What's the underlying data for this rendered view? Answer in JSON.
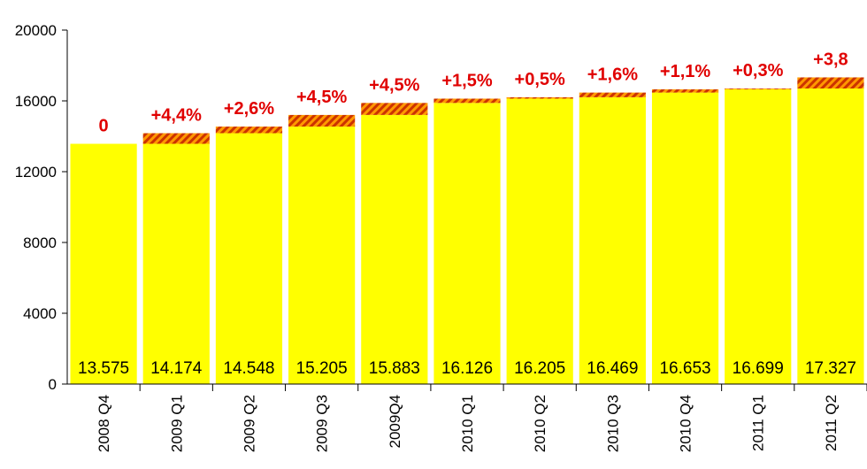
{
  "chart_data": {
    "type": "bar",
    "categories": [
      "2008 Q4",
      "2009 Q1",
      "2009 Q2",
      "2009 Q3",
      "2009Q4",
      "2010 Q1",
      "2010 Q2",
      "2010 Q3",
      "2010 Q4",
      "2011 Q1",
      "2011 Q2"
    ],
    "values": [
      13575,
      14174,
      14548,
      15205,
      15883,
      16126,
      16205,
      16469,
      16653,
      16699,
      17327
    ],
    "value_labels": [
      "13.575",
      "14.174",
      "14.548",
      "15.205",
      "15.883",
      "16.126",
      "16.205",
      "16.469",
      "16.653",
      "16.699",
      "17.327"
    ],
    "change_labels": [
      "0",
      "+4,4%",
      "+2,6%",
      "+4,5%",
      "+4,5%",
      "+1,5%",
      "+0,5%",
      "+1,6%",
      "+1,1%",
      "+0,3%",
      "+3,8"
    ],
    "ylim": [
      0,
      20000
    ],
    "yticks": [
      0,
      4000,
      8000,
      12000,
      16000,
      20000
    ],
    "title": "",
    "xlabel": "",
    "ylabel": "",
    "grid": false,
    "colors": {
      "bar": "#FFFF00",
      "increment_stripe_a": "#FF9900",
      "increment_stripe_b": "#CC3300",
      "change_label": "#E00000",
      "axis": "#000000"
    }
  }
}
